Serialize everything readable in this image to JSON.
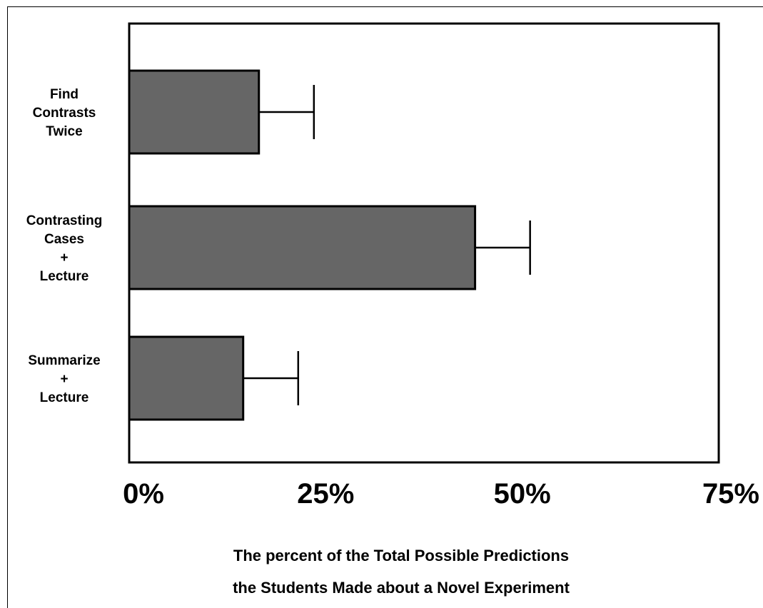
{
  "chart_data": {
    "type": "bar",
    "orientation": "horizontal",
    "categories": [
      [
        "Find",
        "Contrasts",
        "Twice"
      ],
      [
        "Contrasting",
        "Cases",
        "+",
        "Lecture"
      ],
      [
        "Summarize",
        "+",
        "Lecture"
      ]
    ],
    "values": [
      16.5,
      44,
      14.5
    ],
    "error": [
      7,
      7,
      7
    ],
    "xlim": [
      0,
      75
    ],
    "ticks": [
      0,
      25,
      50,
      75
    ],
    "tick_labels": [
      "0%",
      "25%",
      "50%",
      "75%"
    ],
    "xlabel": [
      "The percent of the Total Possible Predictions",
      "the Students Made about a Novel Experiment"
    ],
    "bar_color": "#666666",
    "grid": false
  }
}
